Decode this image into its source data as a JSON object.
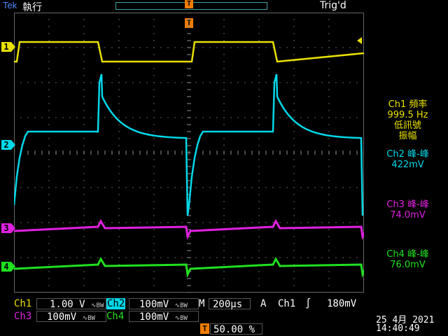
{
  "header": {
    "brand": "Tek",
    "mode": "執行",
    "trigger_status": "Trig'd",
    "trigger_marker": "T"
  },
  "channels": [
    {
      "id": "1",
      "color": "#e8e000"
    },
    {
      "id": "2",
      "color": "#00d8e8"
    },
    {
      "id": "3",
      "color": "#e020e0"
    },
    {
      "id": "4",
      "color": "#20e020"
    }
  ],
  "measurements": {
    "ch1_title": "Ch1 頻率",
    "ch1_value": "999.5 Hz",
    "ch1_note1": "低訊號",
    "ch1_note2": "振幅",
    "ch2_title": "Ch2 峰-峰",
    "ch2_value": "422mV",
    "ch3_title": "Ch3 峰-峰",
    "ch3_value": "74.0mV",
    "ch4_title": "Ch4 峰-峰",
    "ch4_value": "76.0mV"
  },
  "bottom": {
    "ch1_label": "Ch1",
    "ch1_scale": "1.00 V",
    "ch2_label": "Ch2",
    "ch2_scale": "100mV",
    "ch3_label": "Ch3",
    "ch3_scale": "100mV",
    "ch4_label": "Ch4",
    "ch4_scale": "100mV",
    "bw_symbol": "∿BW",
    "timebase_label": "M",
    "timebase": "200µs",
    "trig_mode": "A",
    "trig_source": "Ch1",
    "trig_slope": "∫",
    "trig_level": "180mV",
    "trig_position": "50.00 %",
    "date": "25 4月  2021",
    "time": "14:40:49"
  }
}
